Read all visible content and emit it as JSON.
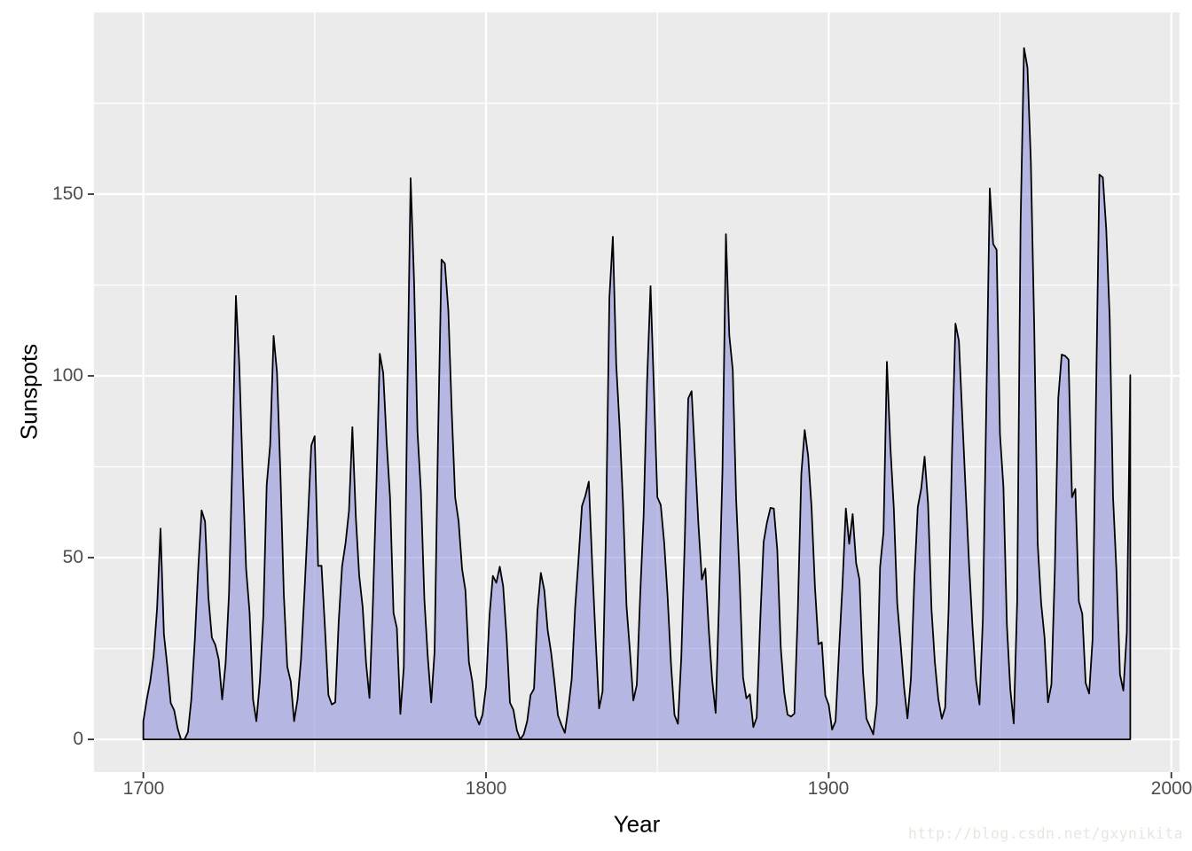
{
  "chart_data": {
    "type": "area",
    "title": "",
    "xlabel": "Year",
    "ylabel": "Sunspots",
    "x_start": 1700,
    "x_end": 1988,
    "x_step": 1,
    "values": [
      5,
      11,
      16,
      23,
      36,
      58,
      29,
      20,
      10,
      8,
      3,
      0,
      0,
      2,
      11,
      27,
      47,
      63,
      60,
      39,
      28,
      26,
      22,
      11,
      21,
      40,
      78,
      122,
      103,
      73,
      47,
      35,
      11,
      5,
      16,
      34,
      70,
      81,
      111,
      101,
      73,
      40,
      20,
      16,
      5,
      11,
      22,
      40,
      60,
      80.9,
      83.4,
      47.7,
      47.8,
      30.7,
      12.2,
      9.6,
      10.2,
      32.4,
      47.6,
      54,
      62.9,
      85.9,
      61.2,
      45.1,
      36.4,
      20.9,
      11.4,
      37.8,
      69.8,
      106.1,
      100.8,
      81.6,
      66.5,
      34.8,
      30.6,
      7,
      19.8,
      92.5,
      154.4,
      125.9,
      84.8,
      68.1,
      38.5,
      22.8,
      10.2,
      24.1,
      82.9,
      132,
      130.9,
      118.1,
      89.9,
      66.6,
      60,
      46.9,
      41,
      21.3,
      16,
      6.4,
      4.1,
      6.8,
      14.5,
      34,
      45,
      43.1,
      47.5,
      42.2,
      28.1,
      10.1,
      8.1,
      2.5,
      0,
      1.4,
      5,
      12.2,
      13.9,
      35.4,
      45.8,
      41.1,
      30.1,
      23.9,
      15.6,
      6.6,
      4,
      1.8,
      8.5,
      16.6,
      36.3,
      49.6,
      64.2,
      67,
      70.9,
      47.8,
      27.5,
      8.5,
      13.2,
      56.9,
      121.5,
      138.3,
      103.2,
      85.7,
      64.6,
      36.7,
      24.2,
      10.7,
      15,
      40.1,
      61.5,
      98.5,
      124.7,
      96.3,
      66.6,
      64.5,
      54.1,
      39,
      20.6,
      6.7,
      4.3,
      22.7,
      54.8,
      93.8,
      95.8,
      77.2,
      59.1,
      44,
      47,
      30.5,
      16.3,
      7.3,
      37.6,
      74,
      139,
      111.2,
      101.6,
      66.2,
      44.7,
      17,
      11.3,
      12.4,
      3.4,
      6,
      32.3,
      54.3,
      59.7,
      63.7,
      63.5,
      52.2,
      25.4,
      13.1,
      6.8,
      6.3,
      7.1,
      35.6,
      73,
      85.1,
      78,
      64,
      41.8,
      26.2,
      26.7,
      12.1,
      9.5,
      2.7,
      5,
      24.4,
      42,
      63.5,
      53.8,
      62,
      48.5,
      43.9,
      18.6,
      5.7,
      3.6,
      1.4,
      9.6,
      47.4,
      57.1,
      103.9,
      80.6,
      63.6,
      37.6,
      26.1,
      14.2,
      5.8,
      16.7,
      44.3,
      63.9,
      69,
      77.8,
      64.9,
      35.7,
      21.2,
      11.1,
      5.7,
      8.7,
      36.1,
      79.7,
      114.4,
      109.6,
      88.8,
      67.8,
      47.5,
      30.6,
      16.3,
      9.6,
      33.2,
      92.6,
      151.6,
      136.3,
      134.7,
      83.9,
      69.4,
      31.5,
      13.9,
      4.4,
      38,
      141.7,
      190.2,
      184.8,
      159,
      112.3,
      53.9,
      37.5,
      27.9,
      10.2,
      15.1,
      47,
      93.8,
      105.9,
      105.5,
      104.5,
      66.6,
      68.9,
      38,
      34.5,
      15.5,
      12.6,
      27.5,
      92.5,
      155.4,
      154.6,
      140.4,
      115.9,
      66.6,
      45.9,
      17.9,
      13.4,
      29.4,
      100.2
    ],
    "x_ticks": {
      "major": [
        1700,
        1800,
        1900,
        2000
      ],
      "labels": [
        "1700",
        "1800",
        "1900",
        "2000"
      ],
      "minor": [
        1750,
        1850,
        1950
      ]
    },
    "y_ticks": {
      "major": [
        0,
        50,
        100,
        150
      ],
      "labels": [
        "0",
        "50",
        "100",
        "150"
      ],
      "minor": [
        25,
        75,
        125,
        175
      ]
    },
    "xlim": [
      1685.6,
      2002.4
    ],
    "ylim": [
      -9,
      200
    ],
    "grid": true,
    "legend": "none",
    "colors": {
      "panel_bg": "#EBEBEB",
      "grid": "#FFFFFF",
      "area_fill": "#8282DC",
      "area_fill_opacity": 0.5,
      "line": "#000000",
      "axis_text": "#4D4D4D",
      "axis_title": "#000000",
      "tick_mark": "#333333"
    }
  },
  "watermark": "http://blog.csdn.net/gxynikita"
}
